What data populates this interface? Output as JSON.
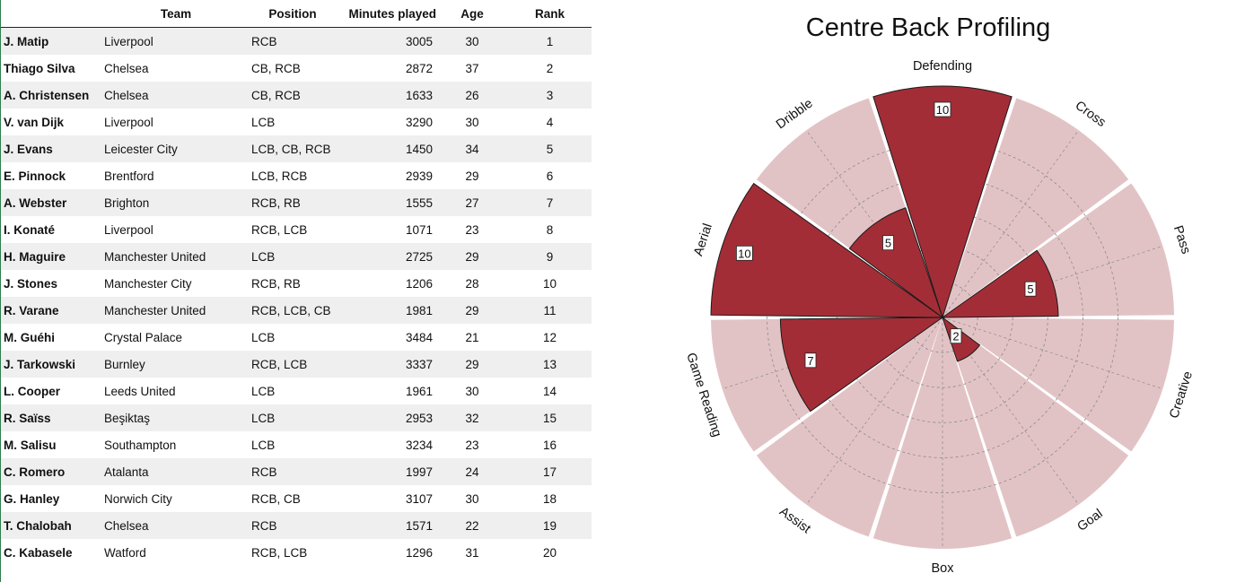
{
  "table": {
    "headers": {
      "player": "",
      "team": "Team",
      "position": "Position",
      "minutes": "Minutes played",
      "age": "Age",
      "rank": "Rank"
    },
    "rows": [
      {
        "player": "J. Matip",
        "team": "Liverpool",
        "position": "RCB",
        "minutes": "3005",
        "age": "30",
        "rank": "1"
      },
      {
        "player": "Thiago Silva",
        "team": "Chelsea",
        "position": "CB, RCB",
        "minutes": "2872",
        "age": "37",
        "rank": "2"
      },
      {
        "player": "A. Christensen",
        "team": "Chelsea",
        "position": "CB, RCB",
        "minutes": "1633",
        "age": "26",
        "rank": "3"
      },
      {
        "player": "V. van Dijk",
        "team": "Liverpool",
        "position": "LCB",
        "minutes": "3290",
        "age": "30",
        "rank": "4"
      },
      {
        "player": "J. Evans",
        "team": "Leicester City",
        "position": "LCB, CB, RCB",
        "minutes": "1450",
        "age": "34",
        "rank": "5"
      },
      {
        "player": "E. Pinnock",
        "team": "Brentford",
        "position": "LCB, RCB",
        "minutes": "2939",
        "age": "29",
        "rank": "6"
      },
      {
        "player": "A. Webster",
        "team": "Brighton",
        "position": "RCB, RB",
        "minutes": "1555",
        "age": "27",
        "rank": "7"
      },
      {
        "player": "I. Konaté",
        "team": "Liverpool",
        "position": "RCB, LCB",
        "minutes": "1071",
        "age": "23",
        "rank": "8"
      },
      {
        "player": "H. Maguire",
        "team": "Manchester United",
        "position": "LCB",
        "minutes": "2725",
        "age": "29",
        "rank": "9"
      },
      {
        "player": "J. Stones",
        "team": "Manchester City",
        "position": "RCB, RB",
        "minutes": "1206",
        "age": "28",
        "rank": "10"
      },
      {
        "player": "R. Varane",
        "team": "Manchester United",
        "position": "RCB, LCB, CB",
        "minutes": "1981",
        "age": "29",
        "rank": "11"
      },
      {
        "player": "M. Guéhi",
        "team": "Crystal Palace",
        "position": "LCB",
        "minutes": "3484",
        "age": "21",
        "rank": "12"
      },
      {
        "player": "J. Tarkowski",
        "team": "Burnley",
        "position": "RCB, LCB",
        "minutes": "3337",
        "age": "29",
        "rank": "13"
      },
      {
        "player": "L. Cooper",
        "team": "Leeds United",
        "position": "LCB",
        "minutes": "1961",
        "age": "30",
        "rank": "14"
      },
      {
        "player": "R. Saïss",
        "team": "Beşiktaş",
        "position": "LCB",
        "minutes": "2953",
        "age": "32",
        "rank": "15"
      },
      {
        "player": "M. Salisu",
        "team": "Southampton",
        "position": "LCB",
        "minutes": "3234",
        "age": "23",
        "rank": "16"
      },
      {
        "player": "C. Romero",
        "team": "Atalanta",
        "position": "RCB",
        "minutes": "1997",
        "age": "24",
        "rank": "17"
      },
      {
        "player": "G. Hanley",
        "team": "Norwich City",
        "position": "RCB, CB",
        "minutes": "3107",
        "age": "30",
        "rank": "18"
      },
      {
        "player": "T. Chalobah",
        "team": "Chelsea",
        "position": "RCB",
        "minutes": "1571",
        "age": "22",
        "rank": "19"
      },
      {
        "player": "C. Kabasele",
        "team": "Watford",
        "position": "RCB, LCB",
        "minutes": "1296",
        "age": "31",
        "rank": "20"
      }
    ]
  },
  "chart_data": {
    "type": "polar-bar",
    "title": "Centre Back Profiling",
    "categories": [
      "Defending",
      "Cross",
      "Pass",
      "Creative",
      "Goal",
      "Box",
      "Assist",
      "Game Reading",
      "Aerial",
      "Dribble"
    ],
    "values": [
      10,
      0,
      5,
      0,
      2,
      0,
      0,
      7,
      10,
      5
    ],
    "value_labels": [
      "10",
      "",
      "5",
      "",
      "2",
      "",
      "",
      "7",
      "10",
      "5"
    ],
    "rlim": [
      0,
      10
    ],
    "grid": true,
    "colors": {
      "bar": "#a32d36",
      "background_bar": "#e2c3c5",
      "grid": "#8a8a8a"
    }
  }
}
